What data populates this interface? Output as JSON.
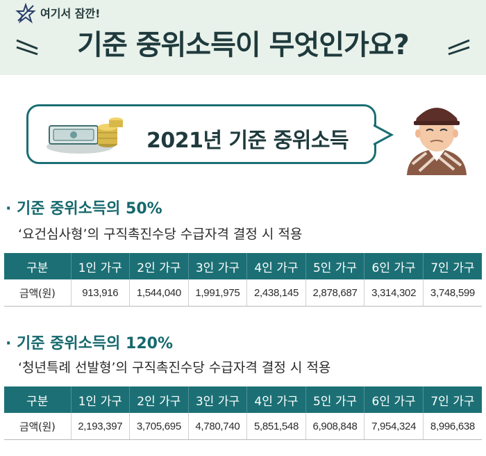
{
  "header": {
    "small_label": "여기서 잠깐!",
    "title": "기준 중위소득이 무엇인가요?"
  },
  "banner": {
    "title": "2021년 기준 중위소득"
  },
  "sections": [
    {
      "title": "기준 중위소득의 50%",
      "subtitle": "‘요건심사형’의 구직촉진수당 수급자격 결정 시 적용",
      "table": {
        "headers": [
          "구분",
          "1인 가구",
          "2인 가구",
          "3인 가구",
          "4인 가구",
          "5인 가구",
          "6인 가구",
          "7인 가구"
        ],
        "row_label": "금액(원)",
        "values": [
          "913,916",
          "1,544,040",
          "1,991,975",
          "2,438,145",
          "2,878,687",
          "3,314,302",
          "3,748,599"
        ]
      }
    },
    {
      "title": "기준 중위소득의 120%",
      "subtitle": "‘청년특례 선발형’의 구직촉진수당 수급자격 결정 시 적용",
      "table": {
        "headers": [
          "구분",
          "1인 가구",
          "2인 가구",
          "3인 가구",
          "4인 가구",
          "5인 가구",
          "6인 가구",
          "7인 가구"
        ],
        "row_label": "금액(원)",
        "values": [
          "2,193,397",
          "3,705,695",
          "4,780,740",
          "5,851,548",
          "6,908,848",
          "7,954,324",
          "8,996,638"
        ]
      }
    }
  ]
}
